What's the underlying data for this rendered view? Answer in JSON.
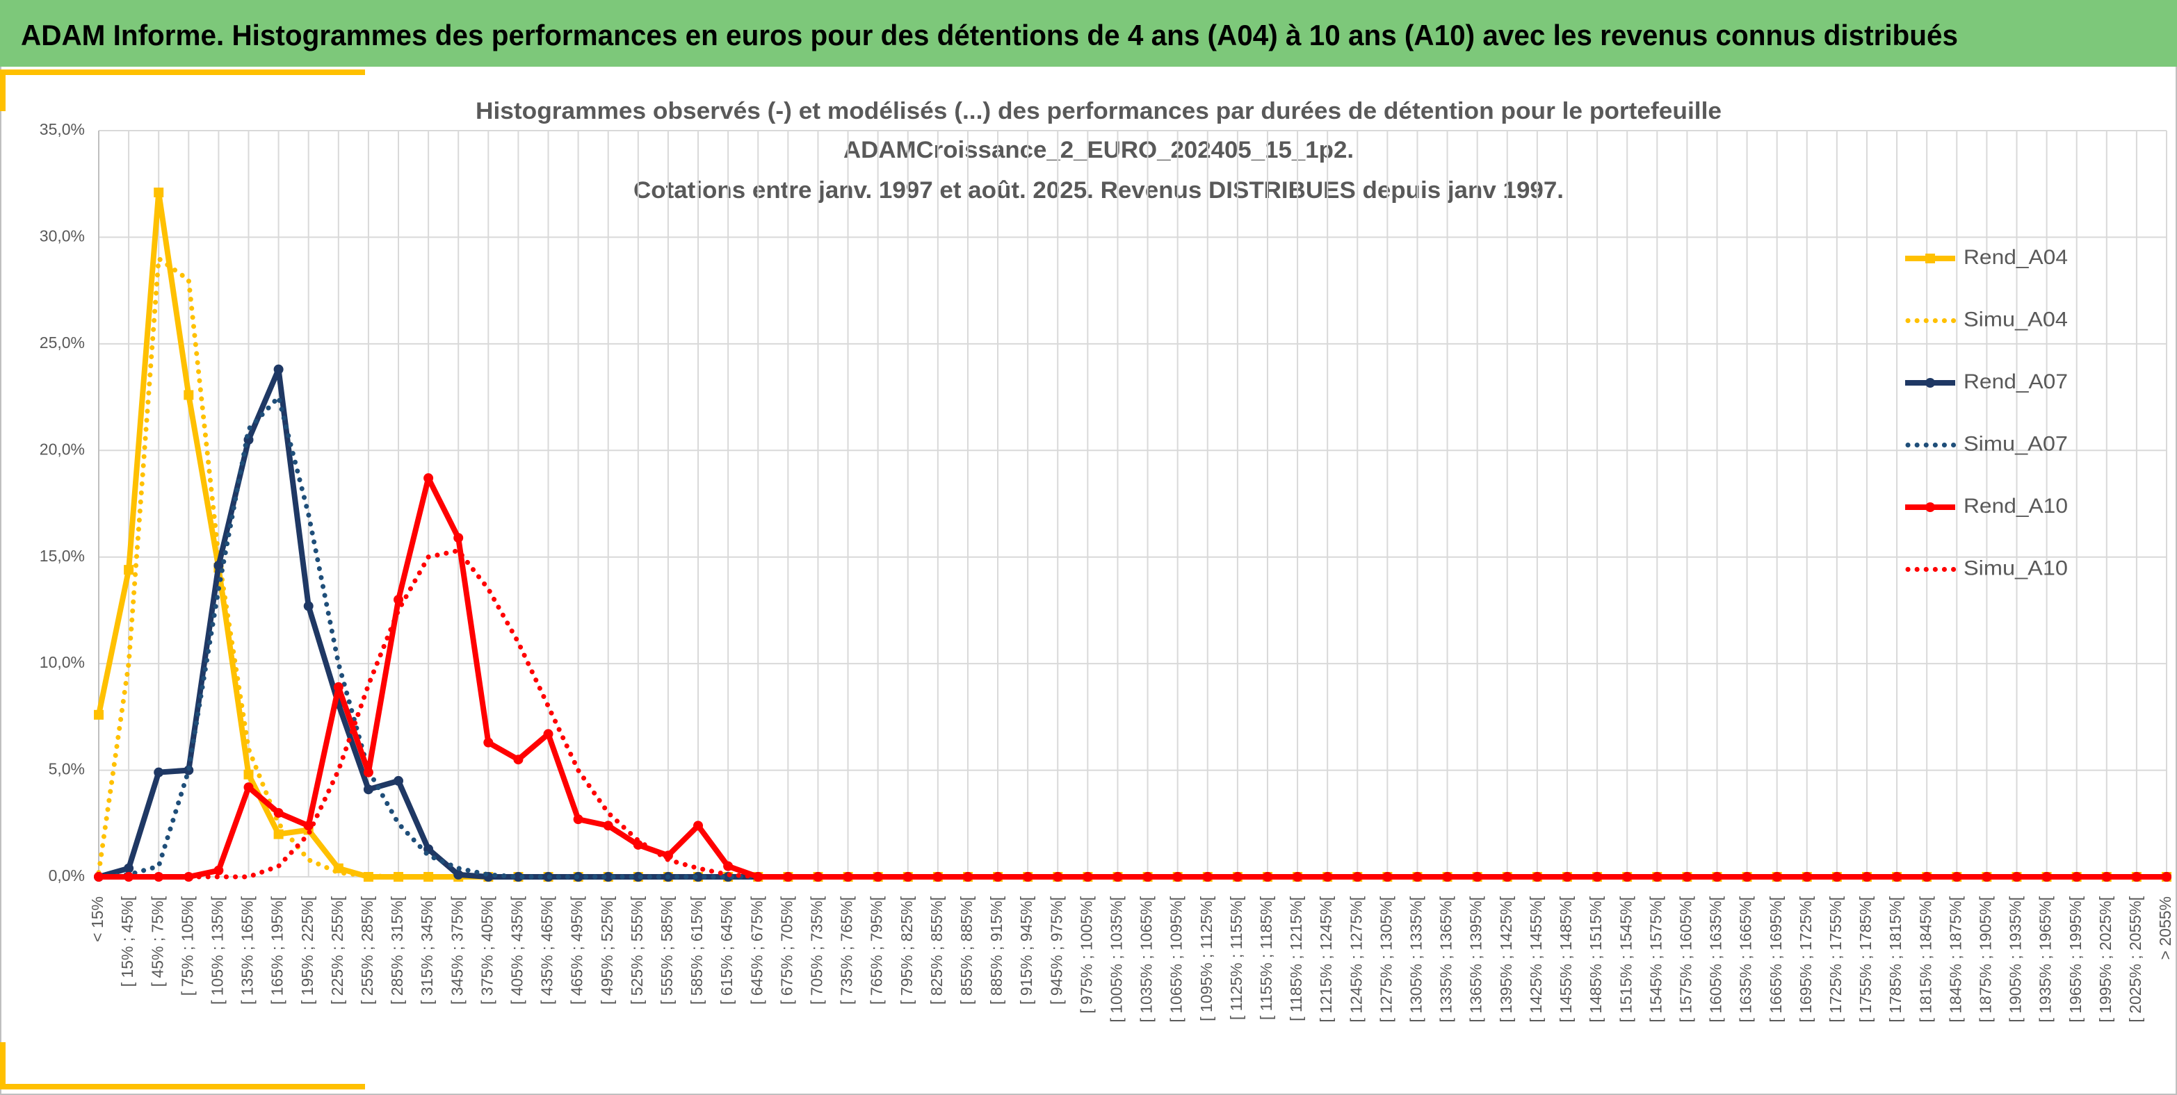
{
  "header": {
    "title": "ADAM Informe. Histogrammes des performances en euros pour des détentions de 4 ans (A04) à 10 ans (A10) avec les revenus connus distribués"
  },
  "chart_data": {
    "type": "line",
    "title": [
      "Histogrammes observés (-) et modélisés (...) des performances par durées de détention pour le portefeuille",
      "ADAMCroissance_2_EURO_202405_15_1p2.",
      "Cotations entre janv. 1997 et août. 2025. Revenus DISTRIBUES depuis janv 1997."
    ],
    "categories": [
      "< 15%",
      "[ 15% ; 45%[",
      "[ 45% ; 75%[",
      "[ 75% ; 105%[",
      "[ 105% ; 135%[",
      "[ 135% ; 165%[",
      "[ 165% ; 195%[",
      "[ 195% ; 225%[",
      "[ 225% ; 255%[",
      "[ 255% ; 285%[",
      "[ 285% ; 315%[",
      "[ 315% ; 345%[",
      "[ 345% ; 375%[",
      "[ 375% ; 405%[",
      "[ 405% ; 435%[",
      "[ 435% ; 465%[",
      "[ 465% ; 495%[",
      "[ 495% ; 525%[",
      "[ 525% ; 555%[",
      "[ 555% ; 585%[",
      "[ 585% ; 615%[",
      "[ 615% ; 645%[",
      "[ 645% ; 675%[",
      "[ 675% ; 705%[",
      "[ 705% ; 735%[",
      "[ 735% ; 765%[",
      "[ 765% ; 795%[",
      "[ 795% ; 825%[",
      "[ 825% ; 855%[",
      "[ 855% ; 885%[",
      "[ 885% ; 915%[",
      "[ 915% ; 945%[",
      "[ 945% ; 975%[",
      "[ 975% ; 1005%[",
      "[ 1005% ; 1035%[",
      "[ 1035% ; 1065%[",
      "[ 1065% ; 1095%[",
      "[ 1095% ; 1125%[",
      "[ 1125% ; 1155%[",
      "[ 1155% ; 1185%[",
      "[ 1185% ; 1215%[",
      "[ 1215% ; 1245%[",
      "[ 1245% ; 1275%[",
      "[ 1275% ; 1305%[",
      "[ 1305% ; 1335%[",
      "[ 1335% ; 1365%[",
      "[ 1365% ; 1395%[",
      "[ 1395% ; 1425%[",
      "[ 1425% ; 1455%[",
      "[ 1455% ; 1485%[",
      "[ 1485% ; 1515%[",
      "[ 1515% ; 1545%[",
      "[ 1545% ; 1575%[",
      "[ 1575% ; 1605%[",
      "[ 1605% ; 1635%[",
      "[ 1635% ; 1665%[",
      "[ 1665% ; 1695%[",
      "[ 1695% ; 1725%[",
      "[ 1725% ; 1755%[",
      "[ 1755% ; 1785%[",
      "[ 1785% ; 1815%[",
      "[ 1815% ; 1845%[",
      "[ 1845% ; 1875%[",
      "[ 1875% ; 1905%[",
      "[ 1905% ; 1935%[",
      "[ 1935% ; 1965%[",
      "[ 1965% ; 1995%[",
      "[ 1995% ; 2025%[",
      "[ 2025% ; 2055%[",
      "> 2055%"
    ],
    "series": [
      {
        "name": "Rend_A04",
        "color": "#ffc000",
        "style": "solid",
        "marker": "square",
        "values": [
          7.6,
          14.4,
          32.1,
          22.6,
          14.5,
          4.8,
          2.0,
          2.2,
          0.4,
          0,
          0,
          0,
          0,
          0,
          0,
          0,
          0,
          0,
          0,
          0,
          0,
          0,
          0,
          0,
          0,
          0,
          0,
          0,
          0,
          0,
          0,
          0,
          0,
          0,
          0,
          0,
          0,
          0,
          0,
          0,
          0,
          0,
          0,
          0,
          0,
          0,
          0,
          0,
          0,
          0,
          0,
          0,
          0,
          0,
          0,
          0,
          0,
          0,
          0,
          0,
          0,
          0,
          0,
          0,
          0,
          0,
          0,
          0,
          0,
          0
        ]
      },
      {
        "name": "Simu_A04",
        "color": "#ffc000",
        "style": "dotted",
        "marker": "none",
        "values": [
          0.2,
          10,
          29,
          28,
          15,
          6,
          2.5,
          0.8,
          0.2,
          0.05,
          0,
          0,
          0,
          0,
          0,
          0,
          0,
          0,
          0,
          0,
          0,
          0,
          0,
          0,
          0,
          0,
          0,
          0,
          0,
          0,
          0,
          0,
          0,
          0,
          0,
          0,
          0,
          0,
          0,
          0,
          0,
          0,
          0,
          0,
          0,
          0,
          0,
          0,
          0,
          0,
          0,
          0,
          0,
          0,
          0,
          0,
          0,
          0,
          0,
          0,
          0,
          0,
          0,
          0,
          0,
          0,
          0,
          0,
          0,
          0
        ]
      },
      {
        "name": "Rend_A07",
        "color": "#1f3864",
        "style": "solid",
        "marker": "circle",
        "values": [
          0,
          0.4,
          4.9,
          5.0,
          14.6,
          20.5,
          23.8,
          12.7,
          8.1,
          4.1,
          4.5,
          1.3,
          0.1,
          0,
          0,
          0,
          0,
          0,
          0,
          0,
          0,
          0,
          0,
          0,
          0,
          0,
          0,
          0,
          0,
          0,
          0,
          0,
          0,
          0,
          0,
          0,
          0,
          0,
          0,
          0,
          0,
          0,
          0,
          0,
          0,
          0,
          0,
          0,
          0,
          0,
          0,
          0,
          0,
          0,
          0,
          0,
          0,
          0,
          0,
          0,
          0,
          0,
          0,
          0,
          0,
          0,
          0,
          0,
          0,
          0
        ]
      },
      {
        "name": "Simu_A07",
        "color": "#1f4e79",
        "style": "dotted",
        "marker": "none",
        "values": [
          0,
          0.1,
          0.5,
          5,
          13.5,
          21,
          22.5,
          17,
          10,
          5,
          2.5,
          1,
          0.4,
          0.1,
          0,
          0,
          0,
          0,
          0,
          0,
          0,
          0,
          0,
          0,
          0,
          0,
          0,
          0,
          0,
          0,
          0,
          0,
          0,
          0,
          0,
          0,
          0,
          0,
          0,
          0,
          0,
          0,
          0,
          0,
          0,
          0,
          0,
          0,
          0,
          0,
          0,
          0,
          0,
          0,
          0,
          0,
          0,
          0,
          0,
          0,
          0,
          0,
          0,
          0,
          0,
          0,
          0,
          0,
          0,
          0
        ]
      },
      {
        "name": "Rend_A10",
        "color": "#ff0000",
        "style": "solid",
        "marker": "circle",
        "values": [
          0,
          0,
          0,
          0,
          0.3,
          4.2,
          3.0,
          2.4,
          8.9,
          4.9,
          13,
          18.7,
          15.9,
          6.3,
          5.5,
          6.7,
          2.7,
          2.4,
          1.5,
          1.0,
          2.4,
          0.5,
          0,
          0,
          0,
          0,
          0,
          0,
          0,
          0,
          0,
          0,
          0,
          0,
          0,
          0,
          0,
          0,
          0,
          0,
          0,
          0,
          0,
          0,
          0,
          0,
          0,
          0,
          0,
          0,
          0,
          0,
          0,
          0,
          0,
          0,
          0,
          0,
          0,
          0,
          0,
          0,
          0,
          0,
          0,
          0,
          0,
          0,
          0,
          0
        ]
      },
      {
        "name": "Simu_A10",
        "color": "#ff0000",
        "style": "dotted",
        "marker": "none",
        "values": [
          0,
          0,
          0,
          0,
          0,
          0,
          0.5,
          2,
          5,
          9,
          12.5,
          15,
          15.3,
          13.5,
          11,
          8,
          5,
          3,
          1.7,
          0.8,
          0.4,
          0.1,
          0,
          0,
          0,
          0,
          0,
          0,
          0,
          0,
          0,
          0,
          0,
          0,
          0,
          0,
          0,
          0,
          0,
          0,
          0,
          0,
          0,
          0,
          0,
          0,
          0,
          0,
          0,
          0,
          0,
          0,
          0,
          0,
          0,
          0,
          0,
          0,
          0,
          0,
          0,
          0,
          0,
          0,
          0,
          0,
          0,
          0,
          0,
          0
        ]
      }
    ],
    "ylim": [
      0,
      35
    ],
    "yticks": [
      {
        "value": 0,
        "label": "0,0%"
      },
      {
        "value": 5,
        "label": "5,0%"
      },
      {
        "value": 10,
        "label": "10,0%"
      },
      {
        "value": 15,
        "label": "15,0%"
      },
      {
        "value": 20,
        "label": "20,0%"
      },
      {
        "value": 25,
        "label": "25,0%"
      },
      {
        "value": 30,
        "label": "30,0%"
      },
      {
        "value": 35,
        "label": "35,0%"
      }
    ],
    "grid": true,
    "legend": "right"
  }
}
